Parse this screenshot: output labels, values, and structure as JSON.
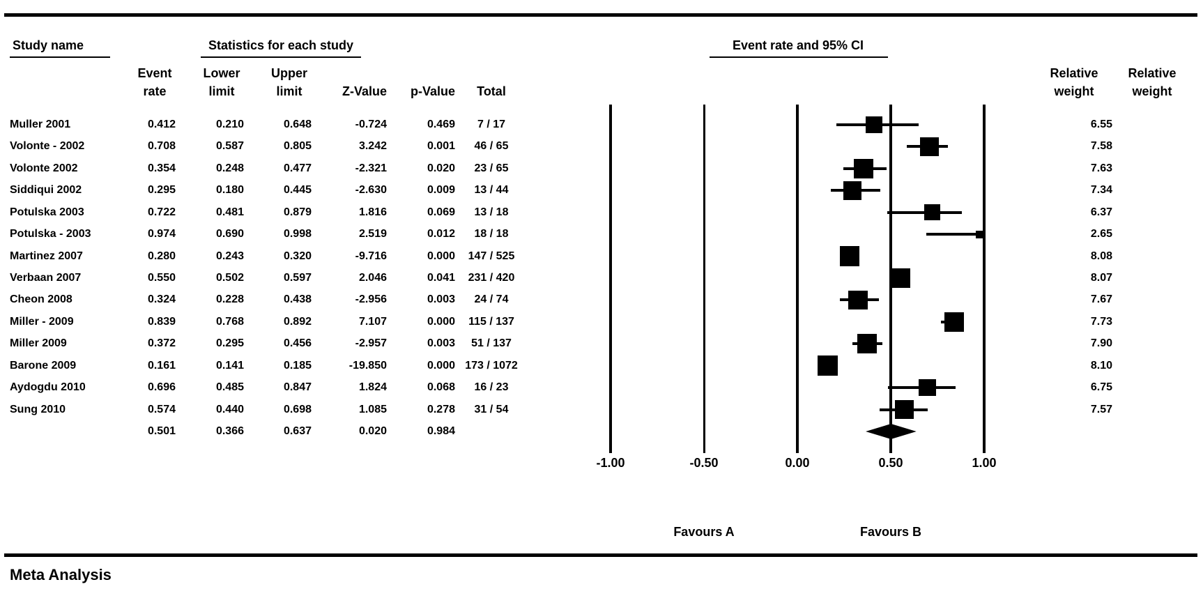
{
  "figure": {
    "section_headers": {
      "study_name": "Study name",
      "statistics": "Statistics for each study",
      "plot": "Event rate and 95% CI"
    },
    "column_headers": [
      {
        "line1": "Event",
        "line2": "rate"
      },
      {
        "line1": "Lower",
        "line2": "limit"
      },
      {
        "line1": "Upper",
        "line2": "limit"
      },
      {
        "line1": "",
        "line2": "Z-Value"
      },
      {
        "line1": "",
        "line2": "p-Value"
      },
      {
        "line1": "",
        "line2": "Total"
      },
      {
        "line1": "Relative",
        "line2": "weight"
      },
      {
        "line1": "Relative",
        "line2": "weight"
      }
    ],
    "footer_title": "Meta Analysis",
    "colors": {
      "ink": "#000000",
      "background": "#ffffff"
    }
  },
  "axis": {
    "tick_labels": [
      "-1.00",
      "-0.50",
      "0.00",
      "0.50",
      "1.00"
    ],
    "tick_values": [
      -1.0,
      -0.5,
      0.0,
      0.5,
      1.0
    ],
    "favours_left": "Favours A",
    "favours_right": "Favours B"
  },
  "chart_data": {
    "type": "forest",
    "title": "Event rate and 95% CI",
    "effect_measure": "Event rate",
    "xlim": [
      -1.0,
      1.0
    ],
    "xticks": [
      -1.0,
      -0.5,
      0.0,
      0.5,
      1.0
    ],
    "footer_left": "Favours A",
    "footer_right": "Favours B",
    "marker": "square-sized-by-weight",
    "studies": [
      {
        "name": "Muller 2001",
        "event_rate": 0.412,
        "lower": 0.21,
        "upper": 0.648,
        "z_value": -0.724,
        "p_value": 0.469,
        "total": "7 / 17",
        "relative_weight": 6.55
      },
      {
        "name": "Volonte - 2002",
        "event_rate": 0.708,
        "lower": 0.587,
        "upper": 0.805,
        "z_value": 3.242,
        "p_value": 0.001,
        "total": "46 / 65",
        "relative_weight": 7.58
      },
      {
        "name": "Volonte 2002",
        "event_rate": 0.354,
        "lower": 0.248,
        "upper": 0.477,
        "z_value": -2.321,
        "p_value": 0.02,
        "total": "23 / 65",
        "relative_weight": 7.63
      },
      {
        "name": "Siddiqui 2002",
        "event_rate": 0.295,
        "lower": 0.18,
        "upper": 0.445,
        "z_value": -2.63,
        "p_value": 0.009,
        "total": "13 / 44",
        "relative_weight": 7.34
      },
      {
        "name": "Potulska 2003",
        "event_rate": 0.722,
        "lower": 0.481,
        "upper": 0.879,
        "z_value": 1.816,
        "p_value": 0.069,
        "total": "13 / 18",
        "relative_weight": 6.37
      },
      {
        "name": "Potulska - 2003",
        "event_rate": 0.974,
        "lower": 0.69,
        "upper": 0.998,
        "z_value": 2.519,
        "p_value": 0.012,
        "total": "18 / 18",
        "relative_weight": 2.65
      },
      {
        "name": "Martinez 2007",
        "event_rate": 0.28,
        "lower": 0.243,
        "upper": 0.32,
        "z_value": -9.716,
        "p_value": 0.0,
        "total": "147 / 525",
        "relative_weight": 8.08
      },
      {
        "name": "Verbaan 2007",
        "event_rate": 0.55,
        "lower": 0.502,
        "upper": 0.597,
        "z_value": 2.046,
        "p_value": 0.041,
        "total": "231 / 420",
        "relative_weight": 8.07
      },
      {
        "name": "Cheon 2008",
        "event_rate": 0.324,
        "lower": 0.228,
        "upper": 0.438,
        "z_value": -2.956,
        "p_value": 0.003,
        "total": "24 / 74",
        "relative_weight": 7.67
      },
      {
        "name": "Miller - 2009",
        "event_rate": 0.839,
        "lower": 0.768,
        "upper": 0.892,
        "z_value": 7.107,
        "p_value": 0.0,
        "total": "115 / 137",
        "relative_weight": 7.73
      },
      {
        "name": "Miller 2009",
        "event_rate": 0.372,
        "lower": 0.295,
        "upper": 0.456,
        "z_value": -2.957,
        "p_value": 0.003,
        "total": "51 / 137",
        "relative_weight": 7.9
      },
      {
        "name": "Barone 2009",
        "event_rate": 0.161,
        "lower": 0.141,
        "upper": 0.185,
        "z_value": -19.85,
        "p_value": 0.0,
        "total": "173 / 1072",
        "relative_weight": 8.1
      },
      {
        "name": "Aydogdu 2010",
        "event_rate": 0.696,
        "lower": 0.485,
        "upper": 0.847,
        "z_value": 1.824,
        "p_value": 0.068,
        "total": "16 / 23",
        "relative_weight": 6.75
      },
      {
        "name": "Sung 2010",
        "event_rate": 0.574,
        "lower": 0.44,
        "upper": 0.698,
        "z_value": 1.085,
        "p_value": 0.278,
        "total": "31 / 54",
        "relative_weight": 7.57
      }
    ],
    "summary": {
      "event_rate": 0.501,
      "lower": 0.366,
      "upper": 0.637,
      "z_value": 0.02,
      "p_value": 0.984
    }
  }
}
